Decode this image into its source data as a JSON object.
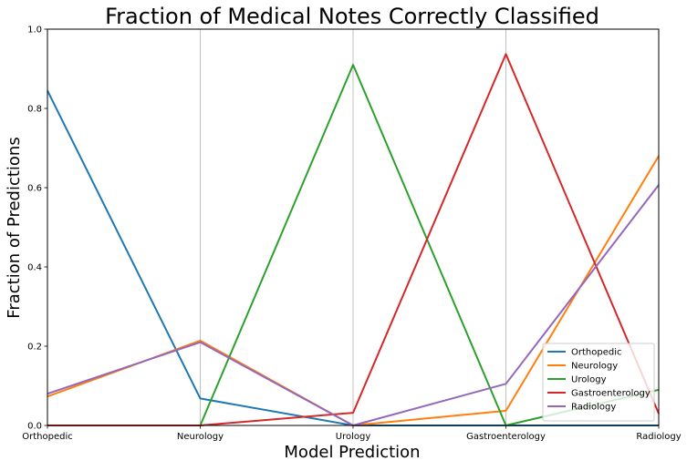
{
  "chart_data": {
    "type": "line",
    "title": "Fraction of Medical Notes Correctly Classified",
    "xlabel": "Model Prediction",
    "ylabel": "Fraction of Predictions",
    "categories": [
      "Orthopedic",
      "Neurology",
      "Urology",
      "Gastroenterology",
      "Radiology"
    ],
    "ylim": [
      0,
      1
    ],
    "yticks": [
      "0.0",
      "0.2",
      "0.4",
      "0.6",
      "0.8",
      "1.0"
    ],
    "grid": "vertical",
    "legend_position": "bottom-right",
    "series": [
      {
        "name": "Orthopedic",
        "color": "#1f77b4",
        "values": [
          0.845,
          0.068,
          0.0,
          0.0,
          0.0
        ]
      },
      {
        "name": "Neurology",
        "color": "#ff7f0e",
        "values": [
          0.073,
          0.214,
          0.0,
          0.037,
          0.68
        ]
      },
      {
        "name": "Urology",
        "color": "#2ca02c",
        "values": [
          0.0,
          0.0,
          0.91,
          0.0,
          0.09
        ]
      },
      {
        "name": "Gastroenterology",
        "color": "#d62728",
        "values": [
          0.0,
          0.0,
          0.032,
          0.937,
          0.03
        ]
      },
      {
        "name": "Radiology",
        "color": "#9467bd",
        "values": [
          0.08,
          0.21,
          0.0,
          0.105,
          0.607
        ]
      }
    ]
  }
}
